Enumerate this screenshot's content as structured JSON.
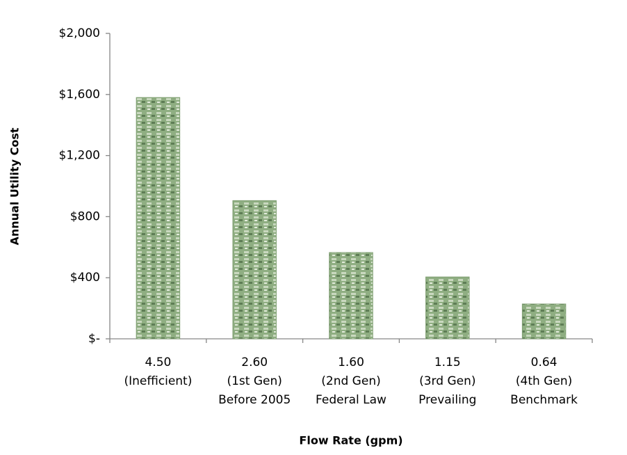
{
  "chart_data": {
    "type": "bar",
    "x_label": "Flow Rate (gpm)",
    "y_label": "Annual Utility Cost",
    "categories": [
      [
        "4.50",
        "(Inefficient)"
      ],
      [
        "2.60",
        "(1st Gen)",
        "Before 2005"
      ],
      [
        "1.60",
        "(2nd Gen)",
        "Federal Law"
      ],
      [
        "1.15",
        "(3rd Gen)",
        "Prevailing"
      ],
      [
        "0.64",
        "(4th Gen)",
        "Benchmark"
      ]
    ],
    "values": [
      1580,
      905,
      565,
      405,
      228
    ],
    "color": "#7f9f72",
    "ylim": [
      0,
      2000
    ],
    "yticks": [
      {
        "value": 0,
        "label": "$-"
      },
      {
        "value": 400,
        "label": "$400"
      },
      {
        "value": 800,
        "label": "$800"
      },
      {
        "value": 1200,
        "label": "$1,200"
      },
      {
        "value": 1600,
        "label": "$1,600"
      },
      {
        "value": 2000,
        "label": "$2,000"
      }
    ],
    "grid": false
  }
}
